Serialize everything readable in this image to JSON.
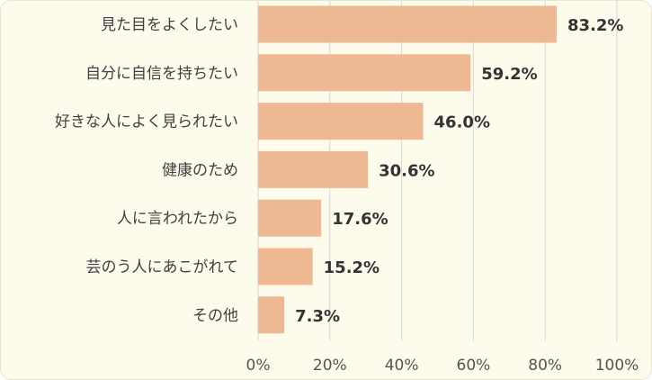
{
  "colors": {
    "background": "#fdfbec",
    "bar": "#edb892",
    "grid": "#d6d6d6",
    "text": "#404040"
  },
  "chart_data": {
    "type": "bar",
    "orientation": "horizontal",
    "categories": [
      "見た目をよくしたい",
      "自分に自信を持ちたい",
      "好きな人によく見られたい",
      "健康のため",
      "人に言われたから",
      "芸のう人にあこがれて",
      "その他"
    ],
    "values": [
      83.2,
      59.2,
      46.0,
      30.6,
      17.6,
      15.2,
      7.3
    ],
    "value_labels": [
      "83.2%",
      "59.2%",
      "46.0%",
      "30.6%",
      "17.6%",
      "15.2%",
      "7.3%"
    ],
    "x_ticks": [
      "0%",
      "20%",
      "40%",
      "60%",
      "80%",
      "100%"
    ],
    "xlim": [
      0,
      100
    ],
    "grid": true,
    "legend": false,
    "title": "",
    "xlabel": "",
    "ylabel": ""
  }
}
